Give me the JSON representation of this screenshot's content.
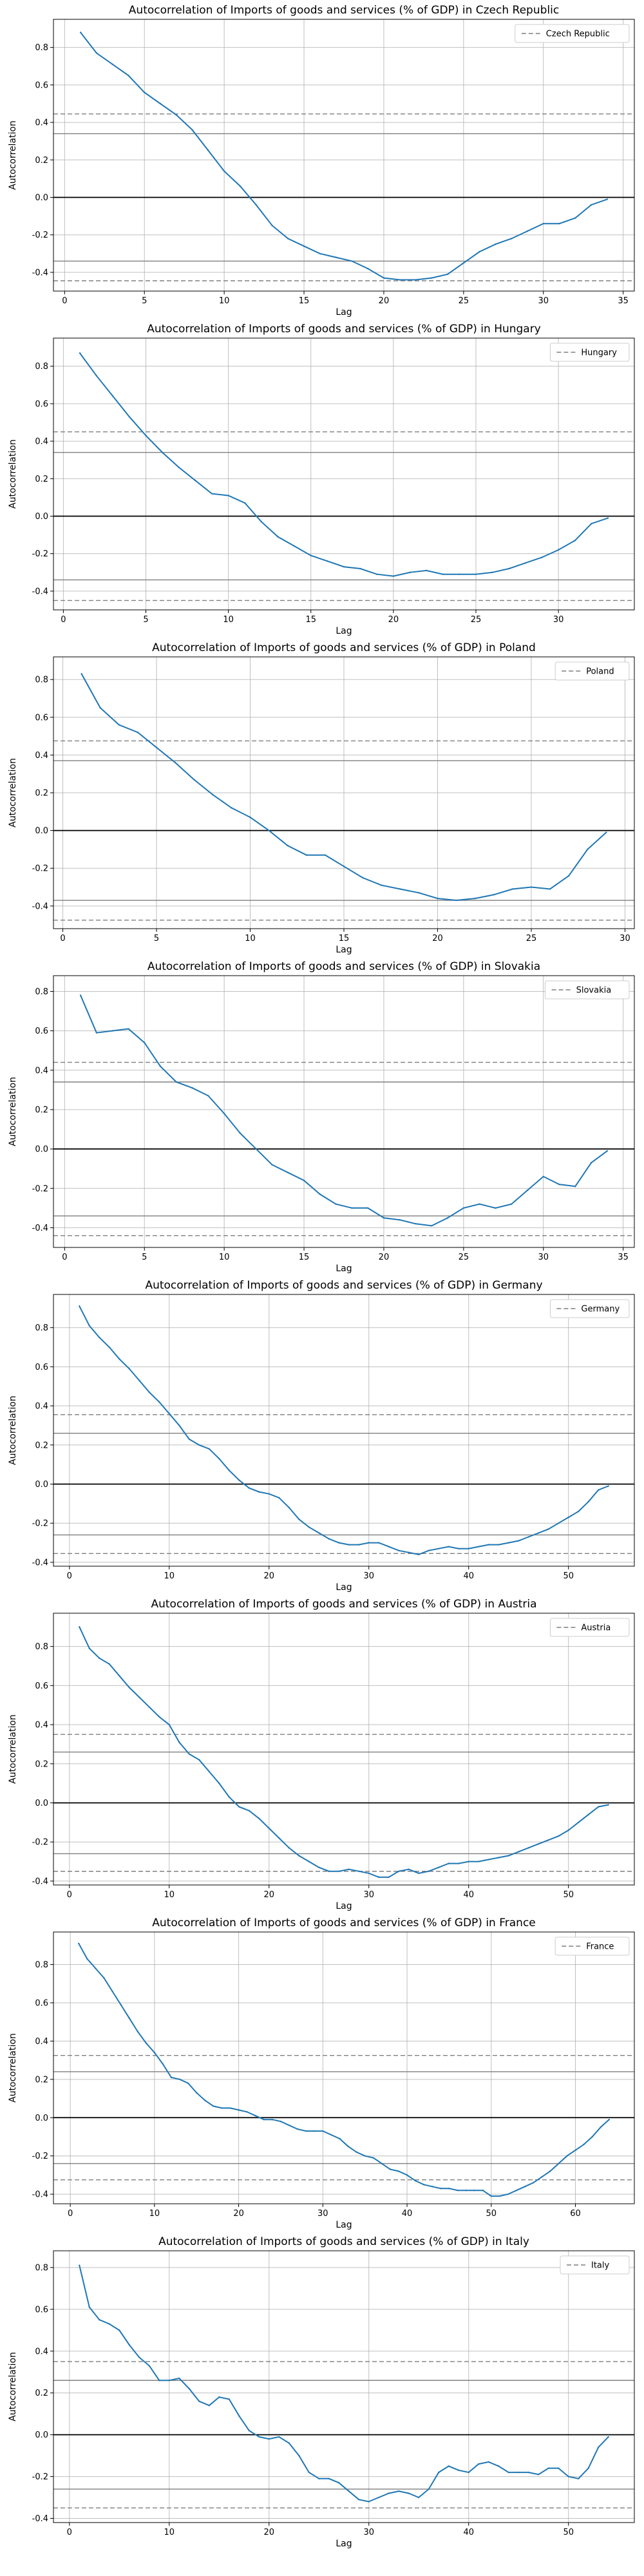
{
  "chart_data": [
    {
      "type": "line",
      "title": "Autocorrelation of Imports of goods and services (% of GDP) in Czech Republic",
      "xlabel": "Lag",
      "ylabel": "Autocorrelation",
      "legend": "Czech Republic",
      "legend_position": "top-right",
      "xlim": [
        -0.7,
        35.7
      ],
      "ylim": [
        -0.5,
        0.95
      ],
      "xticks": [
        0,
        5,
        10,
        15,
        20,
        25,
        30,
        35
      ],
      "yticks": [
        -0.4,
        -0.2,
        0.0,
        0.2,
        0.4,
        0.6,
        0.8
      ],
      "ytick_labels": [
        "-0.4",
        "-0.2",
        "0.0",
        "0.2",
        "0.4",
        "0.6",
        "0.8"
      ],
      "ci_dashed": 0.445,
      "ci_solid": 0.34,
      "x": [
        1,
        2,
        3,
        4,
        5,
        6,
        7,
        8,
        9,
        10,
        11,
        12,
        13,
        14,
        15,
        16,
        17,
        18,
        19,
        20,
        21,
        22,
        23,
        24,
        25,
        26,
        27,
        28,
        29,
        30,
        31,
        32,
        33,
        34
      ],
      "values": [
        0.88,
        0.77,
        0.71,
        0.65,
        0.56,
        0.5,
        0.44,
        0.36,
        0.25,
        0.14,
        0.06,
        -0.04,
        -0.15,
        -0.22,
        -0.26,
        -0.3,
        -0.32,
        -0.34,
        -0.38,
        -0.43,
        -0.44,
        -0.44,
        -0.43,
        -0.41,
        -0.35,
        -0.29,
        -0.25,
        -0.22,
        -0.18,
        -0.14,
        -0.14,
        -0.11,
        -0.04,
        -0.01
      ]
    },
    {
      "type": "line",
      "title": "Autocorrelation of Imports of goods and services (% of GDP) in Hungary",
      "xlabel": "Lag",
      "ylabel": "Autocorrelation",
      "legend": "Hungary",
      "legend_position": "top-right",
      "xlim": [
        -0.6,
        34.6
      ],
      "ylim": [
        -0.5,
        0.95
      ],
      "xticks": [
        0,
        5,
        10,
        15,
        20,
        25,
        30
      ],
      "yticks": [
        -0.4,
        -0.2,
        0.0,
        0.2,
        0.4,
        0.6,
        0.8
      ],
      "ytick_labels": [
        "-0.4",
        "-0.2",
        "0.0",
        "0.2",
        "0.4",
        "0.6",
        "0.8"
      ],
      "ci_dashed": 0.45,
      "ci_solid": 0.34,
      "x": [
        1,
        2,
        3,
        4,
        5,
        6,
        7,
        8,
        9,
        10,
        11,
        12,
        13,
        14,
        15,
        16,
        17,
        18,
        19,
        20,
        21,
        22,
        23,
        24,
        25,
        26,
        27,
        28,
        29,
        30,
        31,
        32,
        33
      ],
      "values": [
        0.87,
        0.75,
        0.64,
        0.53,
        0.43,
        0.34,
        0.26,
        0.19,
        0.12,
        0.11,
        0.07,
        -0.03,
        -0.11,
        -0.16,
        -0.21,
        -0.24,
        -0.27,
        -0.28,
        -0.31,
        -0.32,
        -0.3,
        -0.29,
        -0.31,
        -0.31,
        -0.31,
        -0.3,
        -0.28,
        -0.25,
        -0.22,
        -0.18,
        -0.13,
        -0.04,
        -0.01
      ]
    },
    {
      "type": "line",
      "title": "Autocorrelation of Imports of goods and services (% of GDP) in Poland",
      "xlabel": "Lag",
      "ylabel": "Autocorrelation",
      "legend": "Poland",
      "legend_position": "top-right",
      "xlim": [
        -0.5,
        30.5
      ],
      "ylim": [
        -0.52,
        0.92
      ],
      "xticks": [
        0,
        5,
        10,
        15,
        20,
        25,
        30
      ],
      "yticks": [
        -0.4,
        -0.2,
        0.0,
        0.2,
        0.4,
        0.6,
        0.8
      ],
      "ytick_labels": [
        "-0.4",
        "-0.2",
        "0.0",
        "0.2",
        "0.4",
        "0.6",
        "0.8"
      ],
      "ci_dashed": 0.475,
      "ci_solid": 0.37,
      "x": [
        1,
        2,
        3,
        4,
        5,
        6,
        7,
        8,
        9,
        10,
        11,
        12,
        13,
        14,
        15,
        16,
        17,
        18,
        19,
        20,
        21,
        22,
        23,
        24,
        25,
        26,
        27,
        28,
        29
      ],
      "values": [
        0.83,
        0.65,
        0.56,
        0.52,
        0.44,
        0.36,
        0.27,
        0.19,
        0.12,
        0.07,
        0.0,
        -0.08,
        -0.13,
        -0.13,
        -0.19,
        -0.25,
        -0.29,
        -0.31,
        -0.33,
        -0.36,
        -0.37,
        -0.36,
        -0.34,
        -0.31,
        -0.3,
        -0.31,
        -0.24,
        -0.1,
        -0.01
      ]
    },
    {
      "type": "line",
      "title": "Autocorrelation of Imports of goods and services (% of GDP) in Slovakia",
      "xlabel": "Lag",
      "ylabel": "Autocorrelation",
      "legend": "Slovakia",
      "legend_position": "top-right",
      "xlim": [
        -0.7,
        35.7
      ],
      "ylim": [
        -0.5,
        0.88
      ],
      "xticks": [
        0,
        5,
        10,
        15,
        20,
        25,
        30,
        35
      ],
      "yticks": [
        -0.4,
        -0.2,
        0.0,
        0.2,
        0.4,
        0.6,
        0.8
      ],
      "ytick_labels": [
        "-0.4",
        "-0.2",
        "0.0",
        "0.2",
        "0.4",
        "0.6",
        "0.8"
      ],
      "ci_dashed": 0.44,
      "ci_solid": 0.34,
      "x": [
        1,
        2,
        3,
        4,
        5,
        6,
        7,
        8,
        9,
        10,
        11,
        12,
        13,
        14,
        15,
        16,
        17,
        18,
        19,
        20,
        21,
        22,
        23,
        24,
        25,
        26,
        27,
        28,
        29,
        30,
        31,
        32,
        33,
        34
      ],
      "values": [
        0.78,
        0.59,
        0.6,
        0.61,
        0.54,
        0.42,
        0.34,
        0.31,
        0.27,
        0.18,
        0.08,
        0.0,
        -0.08,
        -0.12,
        -0.16,
        -0.23,
        -0.28,
        -0.3,
        -0.3,
        -0.35,
        -0.36,
        -0.38,
        -0.39,
        -0.35,
        -0.3,
        -0.28,
        -0.3,
        -0.28,
        -0.21,
        -0.14,
        -0.18,
        -0.19,
        -0.07,
        -0.01
      ]
    },
    {
      "type": "line",
      "title": "Autocorrelation of Imports of goods and services (% of GDP) in Germany",
      "xlabel": "Lag",
      "ylabel": "Autocorrelation",
      "legend": "Germany",
      "legend_position": "top-right",
      "xlim": [
        -1.6,
        56.6
      ],
      "ylim": [
        -0.42,
        0.97
      ],
      "xticks": [
        0,
        10,
        20,
        30,
        40,
        50
      ],
      "yticks": [
        -0.4,
        -0.2,
        0.0,
        0.2,
        0.4,
        0.6,
        0.8
      ],
      "ytick_labels": [
        "-0.4",
        "-0.2",
        "0.0",
        "0.2",
        "0.4",
        "0.6",
        "0.8"
      ],
      "ci_dashed": 0.355,
      "ci_solid": 0.26,
      "x": [
        1,
        2,
        3,
        4,
        5,
        6,
        7,
        8,
        9,
        10,
        11,
        12,
        13,
        14,
        15,
        16,
        17,
        18,
        19,
        20,
        21,
        22,
        23,
        24,
        25,
        26,
        27,
        28,
        29,
        30,
        31,
        32,
        33,
        34,
        35,
        36,
        37,
        38,
        39,
        40,
        41,
        42,
        43,
        44,
        45,
        46,
        47,
        48,
        49,
        50,
        51,
        52,
        53,
        54
      ],
      "values": [
        0.91,
        0.81,
        0.75,
        0.7,
        0.64,
        0.59,
        0.53,
        0.47,
        0.42,
        0.36,
        0.3,
        0.23,
        0.2,
        0.18,
        0.13,
        0.07,
        0.02,
        -0.02,
        -0.04,
        -0.05,
        -0.07,
        -0.12,
        -0.18,
        -0.22,
        -0.25,
        -0.28,
        -0.3,
        -0.31,
        -0.31,
        -0.3,
        -0.3,
        -0.32,
        -0.34,
        -0.35,
        -0.36,
        -0.34,
        -0.33,
        -0.32,
        -0.33,
        -0.33,
        -0.32,
        -0.31,
        -0.31,
        -0.3,
        -0.29,
        -0.27,
        -0.25,
        -0.23,
        -0.2,
        -0.17,
        -0.14,
        -0.09,
        -0.03,
        -0.01
      ]
    },
    {
      "type": "line",
      "title": "Autocorrelation of Imports of goods and services (% of GDP) in Austria",
      "xlabel": "Lag",
      "ylabel": "Autocorrelation",
      "legend": "Austria",
      "legend_position": "top-right",
      "xlim": [
        -1.6,
        56.6
      ],
      "ylim": [
        -0.42,
        0.97
      ],
      "xticks": [
        0,
        10,
        20,
        30,
        40,
        50
      ],
      "yticks": [
        -0.4,
        -0.2,
        0.0,
        0.2,
        0.4,
        0.6,
        0.8
      ],
      "ytick_labels": [
        "-0.4",
        "-0.2",
        "0.0",
        "0.2",
        "0.4",
        "0.6",
        "0.8"
      ],
      "ci_dashed": 0.35,
      "ci_solid": 0.26,
      "x": [
        1,
        2,
        3,
        4,
        5,
        6,
        7,
        8,
        9,
        10,
        11,
        12,
        13,
        14,
        15,
        16,
        17,
        18,
        19,
        20,
        21,
        22,
        23,
        24,
        25,
        26,
        27,
        28,
        29,
        30,
        31,
        32,
        33,
        34,
        35,
        36,
        37,
        38,
        39,
        40,
        41,
        42,
        43,
        44,
        45,
        46,
        47,
        48,
        49,
        50,
        51,
        52,
        53,
        54
      ],
      "values": [
        0.9,
        0.79,
        0.74,
        0.71,
        0.65,
        0.59,
        0.54,
        0.49,
        0.44,
        0.4,
        0.31,
        0.25,
        0.22,
        0.16,
        0.1,
        0.03,
        -0.02,
        -0.04,
        -0.08,
        -0.13,
        -0.18,
        -0.23,
        -0.27,
        -0.3,
        -0.33,
        -0.35,
        -0.35,
        -0.34,
        -0.35,
        -0.36,
        -0.38,
        -0.38,
        -0.35,
        -0.34,
        -0.36,
        -0.35,
        -0.33,
        -0.31,
        -0.31,
        -0.3,
        -0.3,
        -0.29,
        -0.28,
        -0.27,
        -0.25,
        -0.23,
        -0.21,
        -0.19,
        -0.17,
        -0.14,
        -0.1,
        -0.06,
        -0.02,
        -0.01
      ]
    },
    {
      "type": "line",
      "title": "Autocorrelation of Imports of goods and services (% of GDP) in France",
      "xlabel": "Lag",
      "ylabel": "Autocorrelation",
      "legend": "France",
      "legend_position": "top-right",
      "xlim": [
        -2.0,
        67.0
      ],
      "ylim": [
        -0.45,
        0.97
      ],
      "xticks": [
        0,
        10,
        20,
        30,
        40,
        50,
        60
      ],
      "yticks": [
        -0.4,
        -0.2,
        0.0,
        0.2,
        0.4,
        0.6,
        0.8
      ],
      "ytick_labels": [
        "-0.4",
        "-0.2",
        "0.0",
        "0.2",
        "0.4",
        "0.6",
        "0.8"
      ],
      "ci_dashed": 0.325,
      "ci_solid": 0.24,
      "x": [
        1,
        2,
        3,
        4,
        5,
        6,
        7,
        8,
        9,
        10,
        11,
        12,
        13,
        14,
        15,
        16,
        17,
        18,
        19,
        20,
        21,
        22,
        23,
        24,
        25,
        26,
        27,
        28,
        29,
        30,
        31,
        32,
        33,
        34,
        35,
        36,
        37,
        38,
        39,
        40,
        41,
        42,
        43,
        44,
        45,
        46,
        47,
        48,
        49,
        50,
        51,
        52,
        53,
        54,
        55,
        56,
        57,
        58,
        59,
        60,
        61,
        62,
        63,
        64
      ],
      "values": [
        0.91,
        0.83,
        0.78,
        0.73,
        0.66,
        0.59,
        0.52,
        0.45,
        0.39,
        0.34,
        0.28,
        0.21,
        0.2,
        0.18,
        0.13,
        0.09,
        0.06,
        0.05,
        0.05,
        0.04,
        0.03,
        0.01,
        -0.01,
        -0.01,
        -0.02,
        -0.04,
        -0.06,
        -0.07,
        -0.07,
        -0.07,
        -0.09,
        -0.11,
        -0.15,
        -0.18,
        -0.2,
        -0.21,
        -0.24,
        -0.27,
        -0.28,
        -0.3,
        -0.33,
        -0.35,
        -0.36,
        -0.37,
        -0.37,
        -0.38,
        -0.38,
        -0.38,
        -0.38,
        -0.41,
        -0.41,
        -0.4,
        -0.38,
        -0.36,
        -0.34,
        -0.31,
        -0.28,
        -0.24,
        -0.2,
        -0.17,
        -0.14,
        -0.1,
        -0.05,
        -0.01
      ]
    },
    {
      "type": "line",
      "title": "Autocorrelation of Imports of goods and services (% of GDP) in Italy",
      "xlabel": "Lag",
      "ylabel": "Autocorrelation",
      "legend": "Italy",
      "legend_position": "top-right",
      "xlim": [
        -1.6,
        56.6
      ],
      "ylim": [
        -0.42,
        0.88
      ],
      "xticks": [
        0,
        10,
        20,
        30,
        40,
        50
      ],
      "yticks": [
        -0.4,
        -0.2,
        0.0,
        0.2,
        0.4,
        0.6,
        0.8
      ],
      "ytick_labels": [
        "-0.4",
        "-0.2",
        "0.0",
        "0.2",
        "0.4",
        "0.6",
        "0.8"
      ],
      "ci_dashed": 0.35,
      "ci_solid": 0.26,
      "x": [
        1,
        2,
        3,
        4,
        5,
        6,
        7,
        8,
        9,
        10,
        11,
        12,
        13,
        14,
        15,
        16,
        17,
        18,
        19,
        20,
        21,
        22,
        23,
        24,
        25,
        26,
        27,
        28,
        29,
        30,
        31,
        32,
        33,
        34,
        35,
        36,
        37,
        38,
        39,
        40,
        41,
        42,
        43,
        44,
        45,
        46,
        47,
        48,
        49,
        50,
        51,
        52,
        53,
        54
      ],
      "values": [
        0.81,
        0.61,
        0.55,
        0.53,
        0.5,
        0.43,
        0.37,
        0.33,
        0.26,
        0.26,
        0.27,
        0.22,
        0.16,
        0.14,
        0.18,
        0.17,
        0.09,
        0.02,
        -0.01,
        -0.02,
        -0.01,
        -0.04,
        -0.1,
        -0.18,
        -0.21,
        -0.21,
        -0.23,
        -0.27,
        -0.31,
        -0.32,
        -0.3,
        -0.28,
        -0.27,
        -0.28,
        -0.3,
        -0.26,
        -0.18,
        -0.15,
        -0.17,
        -0.18,
        -0.14,
        -0.13,
        -0.15,
        -0.18,
        -0.18,
        -0.18,
        -0.19,
        -0.16,
        -0.16,
        -0.2,
        -0.21,
        -0.16,
        -0.06,
        -0.01
      ]
    }
  ]
}
